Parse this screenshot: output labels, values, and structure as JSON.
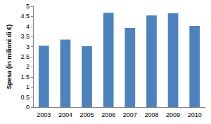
{
  "chart_data": {
    "type": "bar",
    "y_label": "Spesa (in milioni di €)",
    "categories": [
      "2003",
      "2004",
      "2005",
      "2006",
      "2007",
      "2008",
      "2009",
      "2010"
    ],
    "values": [
      3.05,
      3.35,
      3.02,
      4.68,
      3.92,
      4.55,
      4.65,
      4.03
    ],
    "color": "#4f81bd",
    "ylim": [
      0,
      5
    ],
    "yticks": [
      0,
      0.5,
      1,
      1.5,
      2,
      2.5,
      3,
      3.5,
      4,
      4.5,
      5
    ],
    "grid": false
  }
}
